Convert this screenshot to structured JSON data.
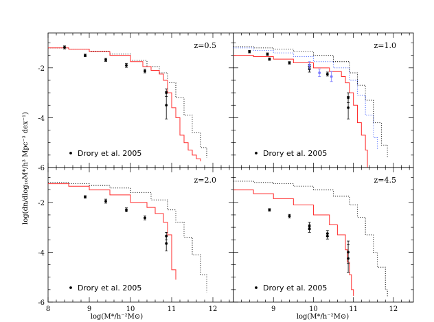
{
  "chart_data": {
    "type": "line",
    "xlabel": "log(M*/h⁻²M⊙)",
    "ylabel": "log(dn/dlog₁₀M*/h³ Mpc⁻³ dex⁻¹)",
    "xlim": [
      8,
      12.5
    ],
    "ylim": [
      -6,
      -0.6
    ],
    "x_ticks": [
      "8",
      "9",
      "10",
      "11",
      "12"
    ],
    "y_ticks": [
      "-2",
      "-4",
      "-6"
    ],
    "colors": {
      "model_red": "#ff2a2a",
      "model_dotted": "#000000",
      "model_dotted_blue": "#3b5bff",
      "data_black": "#000000",
      "data_blue": "#7a7aff"
    },
    "legend_label": "Drory et al. 2005",
    "panels": [
      {
        "label": "z=0.5",
        "red_line": [
          [
            8,
            -1.2
          ],
          [
            8.5,
            -1.25
          ],
          [
            9,
            -1.35
          ],
          [
            9.5,
            -1.5
          ],
          [
            10,
            -1.75
          ],
          [
            10.3,
            -1.95
          ],
          [
            10.5,
            -2.1
          ],
          [
            10.7,
            -2.25
          ],
          [
            10.8,
            -2.5
          ],
          [
            10.9,
            -3.0
          ],
          [
            11.0,
            -3.6
          ],
          [
            11.1,
            -4.0
          ],
          [
            11.2,
            -4.7
          ],
          [
            11.3,
            -5.0
          ],
          [
            11.4,
            -5.3
          ],
          [
            11.5,
            -5.5
          ],
          [
            11.6,
            -5.65
          ],
          [
            11.7,
            -5.75
          ]
        ],
        "dotted_line": [
          [
            8,
            -1.2
          ],
          [
            8.5,
            -1.25
          ],
          [
            9,
            -1.33
          ],
          [
            9.5,
            -1.45
          ],
          [
            10,
            -1.7
          ],
          [
            10.4,
            -1.95
          ],
          [
            10.7,
            -2.2
          ],
          [
            10.9,
            -2.6
          ],
          [
            11.1,
            -3.2
          ],
          [
            11.3,
            -3.9
          ],
          [
            11.5,
            -4.6
          ],
          [
            11.7,
            -5.2
          ],
          [
            11.85,
            -5.6
          ]
        ],
        "points": [
          {
            "x": 8.4,
            "y": -1.18,
            "err": 0.06
          },
          {
            "x": 8.9,
            "y": -1.5,
            "err": 0.05
          },
          {
            "x": 9.4,
            "y": -1.68,
            "err": 0.06
          },
          {
            "x": 9.9,
            "y": -1.9,
            "err": 0.08
          },
          {
            "x": 10.35,
            "y": -2.13,
            "err": 0.07
          },
          {
            "x": 10.87,
            "y": -3.0,
            "err": 0.15
          },
          {
            "x": 10.87,
            "y": -3.5,
            "err": 0.55
          }
        ],
        "blue_points": []
      },
      {
        "label": "z=1.0",
        "red_line": [
          [
            8,
            -1.5
          ],
          [
            8.5,
            -1.55
          ],
          [
            9,
            -1.65
          ],
          [
            9.5,
            -1.8
          ],
          [
            10,
            -2.0
          ],
          [
            10.4,
            -2.15
          ],
          [
            10.7,
            -2.35
          ],
          [
            10.8,
            -2.6
          ],
          [
            10.9,
            -3.0
          ],
          [
            11.0,
            -3.5
          ],
          [
            11.1,
            -4.2
          ],
          [
            11.2,
            -4.7
          ],
          [
            11.3,
            -5.3
          ],
          [
            11.35,
            -6.0
          ]
        ],
        "dotted_line": [
          [
            8,
            -1.15
          ],
          [
            8.5,
            -1.2
          ],
          [
            9,
            -1.25
          ],
          [
            9.5,
            -1.35
          ],
          [
            10,
            -1.5
          ],
          [
            10.5,
            -1.75
          ],
          [
            10.9,
            -2.2
          ],
          [
            11.1,
            -2.7
          ],
          [
            11.3,
            -3.3
          ],
          [
            11.5,
            -4.2
          ],
          [
            11.7,
            -5.1
          ],
          [
            11.85,
            -5.6
          ]
        ],
        "dotted_line_blue": [
          [
            8,
            -1.2
          ],
          [
            8.5,
            -1.3
          ],
          [
            9,
            -1.4
          ],
          [
            9.5,
            -1.55
          ],
          [
            10,
            -1.75
          ],
          [
            10.5,
            -2.0
          ],
          [
            10.9,
            -2.5
          ],
          [
            11.1,
            -3.1
          ],
          [
            11.3,
            -3.9
          ],
          [
            11.5,
            -4.8
          ],
          [
            11.6,
            -5.3
          ]
        ],
        "points": [
          {
            "x": 8.4,
            "y": -1.35,
            "err": 0.05
          },
          {
            "x": 8.85,
            "y": -1.45,
            "err": 0.05
          },
          {
            "x": 8.9,
            "y": -1.65,
            "err": 0.05
          },
          {
            "x": 9.4,
            "y": -1.8,
            "err": 0.05
          },
          {
            "x": 9.9,
            "y": -1.95,
            "err": 0.1
          },
          {
            "x": 9.9,
            "y": -2.05,
            "err": 0.12
          },
          {
            "x": 10.35,
            "y": -2.25,
            "err": 0.08
          },
          {
            "x": 10.87,
            "y": -3.2,
            "err": 0.2
          },
          {
            "x": 10.87,
            "y": -3.6,
            "err": 0.45
          }
        ],
        "blue_points": [
          {
            "x": 9.9,
            "y": -1.9,
            "err": 0.15
          },
          {
            "x": 10.15,
            "y": -2.2,
            "err": 0.15
          },
          {
            "x": 10.45,
            "y": -2.35,
            "err": 0.2
          }
        ]
      },
      {
        "label": "z=2.0",
        "red_line": [
          [
            8,
            -1.25
          ],
          [
            8.5,
            -1.35
          ],
          [
            9,
            -1.5
          ],
          [
            9.5,
            -1.7
          ],
          [
            10,
            -2.0
          ],
          [
            10.4,
            -2.2
          ],
          [
            10.6,
            -2.45
          ],
          [
            10.8,
            -2.8
          ],
          [
            10.9,
            -3.3
          ],
          [
            11.0,
            -3.8
          ],
          [
            11.0,
            -4.7
          ],
          [
            11.1,
            -5.1
          ]
        ],
        "dotted_line": [
          [
            8,
            -1.2
          ],
          [
            8.5,
            -1.25
          ],
          [
            9,
            -1.32
          ],
          [
            9.5,
            -1.42
          ],
          [
            10,
            -1.6
          ],
          [
            10.5,
            -1.9
          ],
          [
            10.9,
            -2.3
          ],
          [
            11.1,
            -2.8
          ],
          [
            11.3,
            -3.4
          ],
          [
            11.5,
            -4.1
          ],
          [
            11.7,
            -4.9
          ],
          [
            11.85,
            -5.6
          ]
        ],
        "points": [
          {
            "x": 8.9,
            "y": -1.78,
            "err": 0.05
          },
          {
            "x": 9.4,
            "y": -1.95,
            "err": 0.08
          },
          {
            "x": 9.9,
            "y": -2.3,
            "err": 0.08
          },
          {
            "x": 10.35,
            "y": -2.62,
            "err": 0.08
          },
          {
            "x": 10.87,
            "y": -3.35,
            "err": 0.15
          },
          {
            "x": 10.87,
            "y": -3.65,
            "err": 0.3
          }
        ],
        "blue_points": []
      },
      {
        "label": "z=4.5",
        "red_line": [
          [
            8,
            -1.5
          ],
          [
            8.5,
            -1.65
          ],
          [
            9,
            -1.85
          ],
          [
            9.5,
            -2.1
          ],
          [
            10,
            -2.5
          ],
          [
            10.4,
            -2.9
          ],
          [
            10.6,
            -3.3
          ],
          [
            10.8,
            -3.9
          ],
          [
            10.85,
            -4.4
          ],
          [
            10.9,
            -4.9
          ],
          [
            10.95,
            -5.5
          ],
          [
            11.0,
            -5.75
          ]
        ],
        "dotted_line": [
          [
            8,
            -1.15
          ],
          [
            8.5,
            -1.2
          ],
          [
            9,
            -1.25
          ],
          [
            9.5,
            -1.35
          ],
          [
            10,
            -1.5
          ],
          [
            10.5,
            -1.75
          ],
          [
            10.9,
            -2.1
          ],
          [
            11.1,
            -2.6
          ],
          [
            11.3,
            -3.3
          ],
          [
            11.5,
            -4.0
          ],
          [
            11.6,
            -4.6
          ],
          [
            11.8,
            -5.5
          ],
          [
            11.85,
            -5.8
          ]
        ],
        "points": [
          {
            "x": 8.9,
            "y": -2.3,
            "err": 0.05
          },
          {
            "x": 9.4,
            "y": -2.55,
            "err": 0.07
          },
          {
            "x": 9.9,
            "y": -2.95,
            "err": 0.15
          },
          {
            "x": 9.9,
            "y": -3.05,
            "err": 0.15
          },
          {
            "x": 10.35,
            "y": -3.25,
            "err": 0.12
          },
          {
            "x": 10.35,
            "y": -3.35,
            "err": 0.12
          },
          {
            "x": 10.87,
            "y": -4.0,
            "err": 0.45
          },
          {
            "x": 10.87,
            "y": -4.25,
            "err": 0.55
          }
        ],
        "blue_points": []
      }
    ]
  }
}
